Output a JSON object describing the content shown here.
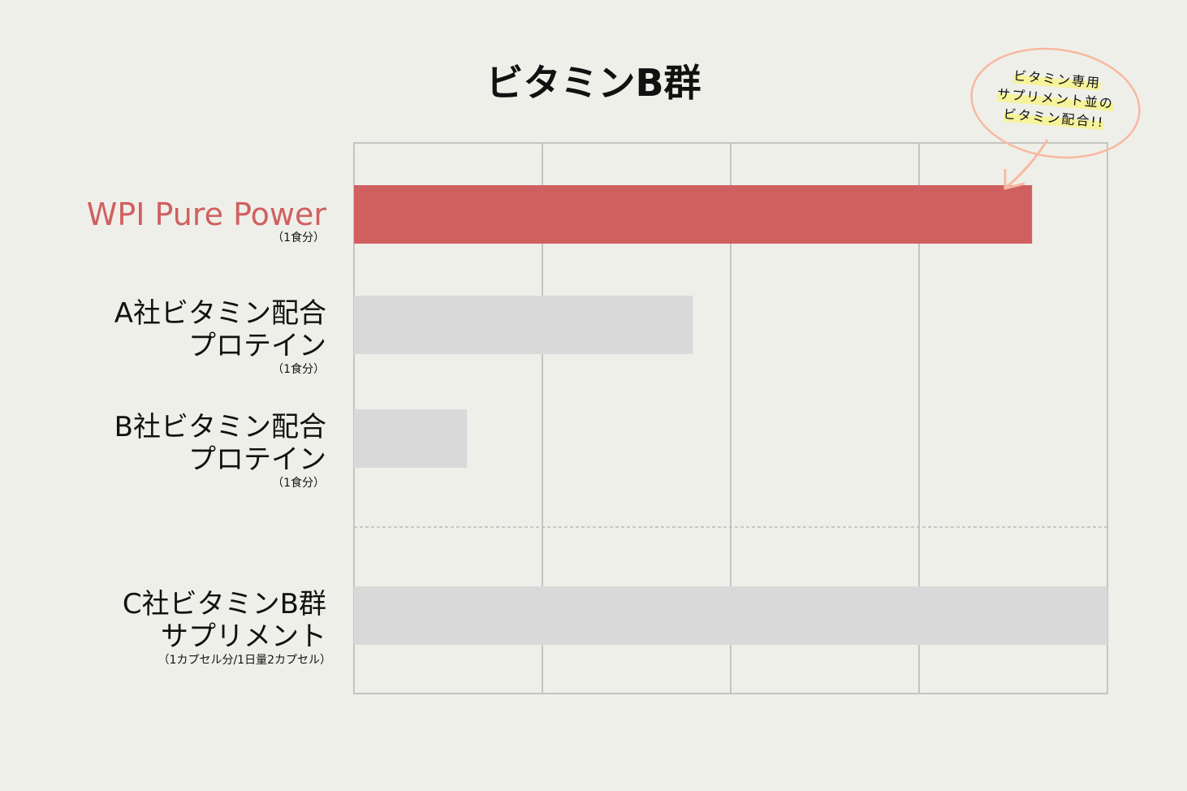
{
  "chart_data": {
    "type": "bar",
    "orientation": "horizontal",
    "title": "ビタミンB群",
    "categories": [
      {
        "lines": [
          "WPI Pure Power"
        ],
        "note": "（1食分）",
        "highlight": true
      },
      {
        "lines": [
          "A社ビタミン配合",
          "プロテイン"
        ],
        "note": "（1食分）",
        "highlight": false
      },
      {
        "lines": [
          "B社ビタミン配合",
          "プロテイン"
        ],
        "note": "（1食分）",
        "highlight": false
      },
      {
        "lines": [
          "C社ビタミンB群",
          "サプリメント"
        ],
        "note": "（1カプセル分/1日量2カプセル）",
        "highlight": false
      }
    ],
    "values": [
      90,
      45,
      15,
      100
    ],
    "xlim": [
      0,
      100
    ],
    "grid": true,
    "gridlines": 4,
    "xlabel": "",
    "ylabel": "",
    "colors": {
      "highlight": "#d06060",
      "default": "#d9d9d9",
      "grid": "#c4c4c4",
      "annotation": "#f7b9a0"
    },
    "annotation": {
      "lines": [
        "ビタミン専用",
        "サプリメント並の",
        "ビタミン配合!!"
      ],
      "target": "WPI Pure Power"
    }
  }
}
